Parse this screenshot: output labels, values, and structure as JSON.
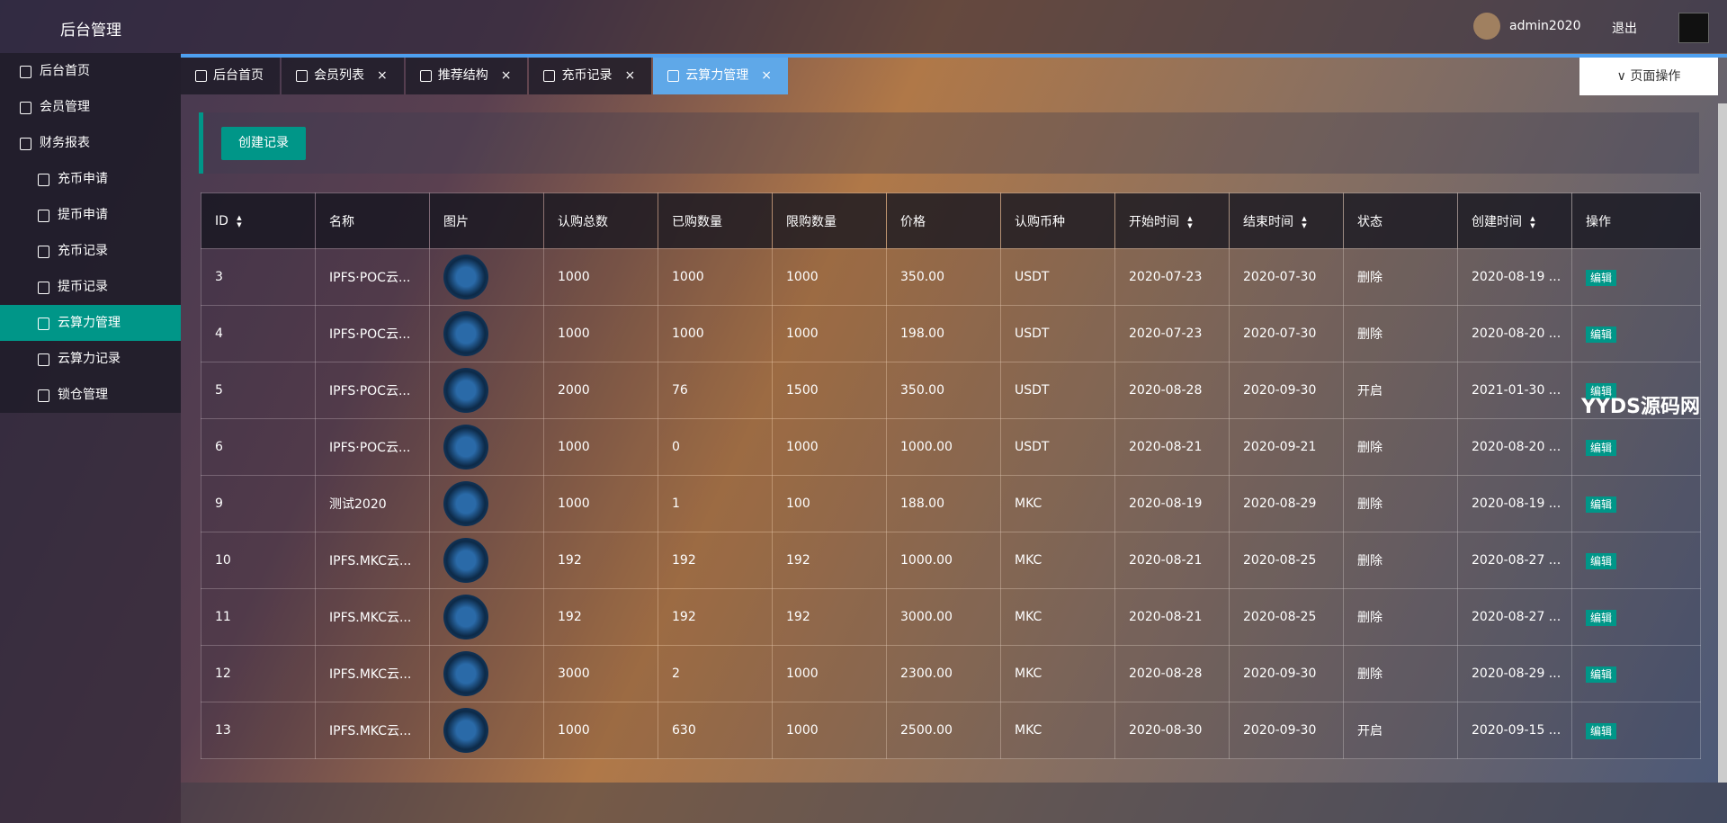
{
  "header": {
    "title": "后台管理",
    "user": "admin2020",
    "logout": "退出"
  },
  "sidebar": {
    "items": [
      {
        "label": "后台首页"
      },
      {
        "label": "会员管理"
      },
      {
        "label": "财务报表"
      },
      {
        "label": "充币申请",
        "sub": true
      },
      {
        "label": "提币申请",
        "sub": true
      },
      {
        "label": "充币记录",
        "sub": true
      },
      {
        "label": "提币记录",
        "sub": true
      },
      {
        "label": "云算力管理",
        "sub": true,
        "active": true
      },
      {
        "label": "云算力记录",
        "sub": true
      },
      {
        "label": "锁仓管理",
        "sub": true
      }
    ]
  },
  "tabs": [
    {
      "label": "后台首页"
    },
    {
      "label": "会员列表"
    },
    {
      "label": "推荐结构"
    },
    {
      "label": "充币记录"
    },
    {
      "label": "云算力管理",
      "active": true
    }
  ],
  "page_ops": "页面操作",
  "create_button": "创建记录",
  "watermark": "YYDS源码网",
  "table": {
    "headers": [
      {
        "label": "ID",
        "sortable": true
      },
      {
        "label": "名称"
      },
      {
        "label": "图片"
      },
      {
        "label": "认购总数"
      },
      {
        "label": "已购数量"
      },
      {
        "label": "限购数量"
      },
      {
        "label": "价格"
      },
      {
        "label": "认购币种"
      },
      {
        "label": "开始时间",
        "sortable": true
      },
      {
        "label": "结束时间",
        "sortable": true
      },
      {
        "label": "状态"
      },
      {
        "label": "创建时间",
        "sortable": true
      },
      {
        "label": "操作"
      }
    ],
    "edit_label": "编辑",
    "rows": [
      [
        "3",
        "IPFS·POC云...",
        "",
        "1000",
        "1000",
        "1000",
        "350.00",
        "USDT",
        "2020-07-23",
        "2020-07-30",
        "删除",
        "2020-08-19 ..."
      ],
      [
        "4",
        "IPFS·POC云...",
        "",
        "1000",
        "1000",
        "1000",
        "198.00",
        "USDT",
        "2020-07-23",
        "2020-07-30",
        "删除",
        "2020-08-20 ..."
      ],
      [
        "5",
        "IPFS·POC云...",
        "",
        "2000",
        "76",
        "1500",
        "350.00",
        "USDT",
        "2020-08-28",
        "2020-09-30",
        "开启",
        "2021-01-30 ..."
      ],
      [
        "6",
        "IPFS·POC云...",
        "",
        "1000",
        "0",
        "1000",
        "1000.00",
        "USDT",
        "2020-08-21",
        "2020-09-21",
        "删除",
        "2020-08-20 ..."
      ],
      [
        "9",
        "测试2020",
        "",
        "1000",
        "1",
        "100",
        "188.00",
        "MKC",
        "2020-08-19",
        "2020-08-29",
        "删除",
        "2020-08-19 ..."
      ],
      [
        "10",
        "IPFS.MKC云...",
        "",
        "192",
        "192",
        "192",
        "1000.00",
        "MKC",
        "2020-08-21",
        "2020-08-25",
        "删除",
        "2020-08-27 ..."
      ],
      [
        "11",
        "IPFS.MKC云...",
        "",
        "192",
        "192",
        "192",
        "3000.00",
        "MKC",
        "2020-08-21",
        "2020-08-25",
        "删除",
        "2020-08-27 ..."
      ],
      [
        "12",
        "IPFS.MKC云...",
        "",
        "3000",
        "2",
        "1000",
        "2300.00",
        "MKC",
        "2020-08-28",
        "2020-09-30",
        "删除",
        "2020-08-29 ..."
      ],
      [
        "13",
        "IPFS.MKC云...",
        "",
        "1000",
        "630",
        "1000",
        "2500.00",
        "MKC",
        "2020-08-30",
        "2020-09-30",
        "开启",
        "2020-09-15 ..."
      ]
    ]
  }
}
